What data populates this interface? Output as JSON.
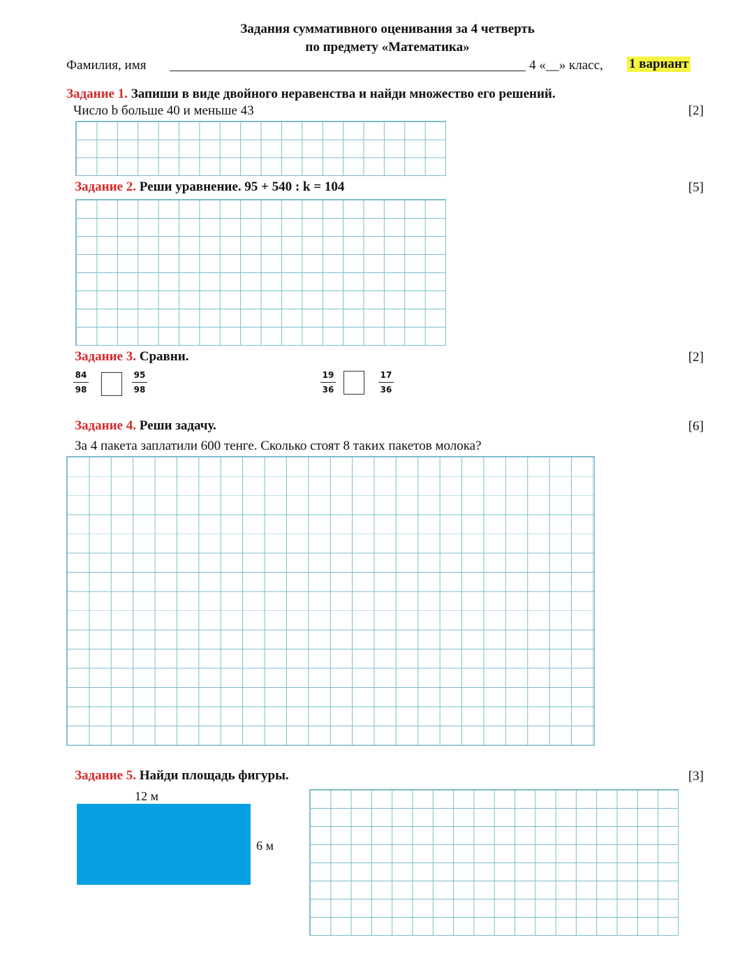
{
  "header": {
    "title_line1": "Задания суммативного оценивания за 4 четверть",
    "title_line2": "по предмету «Математика»",
    "name_label": "Фамилия, имя",
    "class_label": "4 «__» класс,",
    "variant": "1 вариант"
  },
  "tasks": [
    {
      "label": "Задание 1.",
      "text": "Запиши в виде двойного неравенства и найди множество его решений.",
      "subtext": "Число b больше 40 и меньше 43",
      "points": "[2]"
    },
    {
      "label": "Задание 2.",
      "text": "Реши уравнение.  95 + 540 : k = 104",
      "points": "[5]"
    },
    {
      "label": "Задание 3.",
      "text": "Сравни.",
      "points": "[2]",
      "comparisons": [
        {
          "left_num": "84",
          "left_den": "98",
          "right_num": "95",
          "right_den": "98"
        },
        {
          "left_num": "19",
          "left_den": "36",
          "right_num": "17",
          "right_den": "36"
        }
      ]
    },
    {
      "label": "Задание 4.",
      "text": "Реши задачу.",
      "subtext": "За 4 пакета заплатили 600 тенге. Сколько стоят 8 таких пакетов молока?",
      "points": "[6]"
    },
    {
      "label": "Задание 5.",
      "text": "Найди площадь фигуры.",
      "points": "[3]",
      "width_label": "12 м",
      "height_label": "6 м",
      "figure_color": "#08a0e2"
    }
  ]
}
